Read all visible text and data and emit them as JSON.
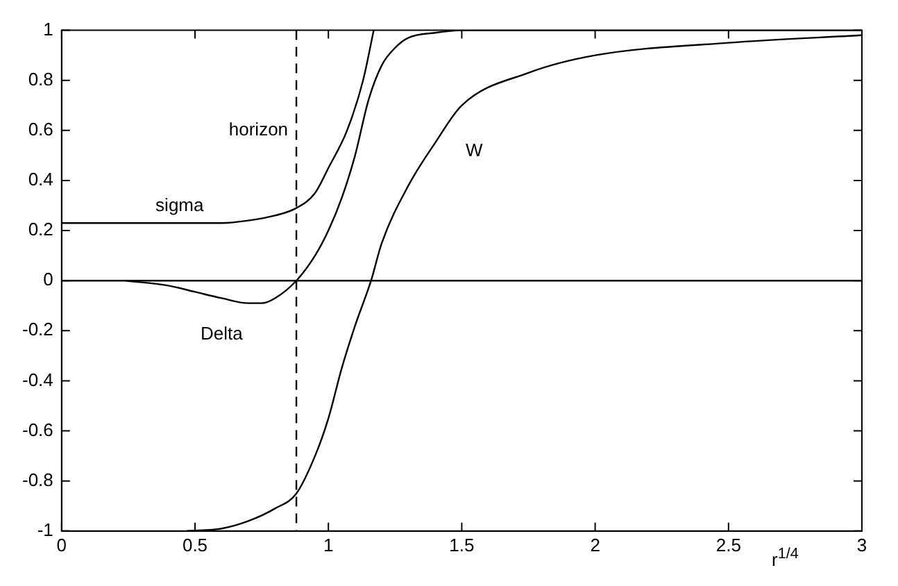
{
  "chart_data": {
    "type": "line",
    "xlabel": "r$^{1/4}$",
    "xlim": [
      0,
      3
    ],
    "xticks": [
      0,
      0.5,
      1,
      1.5,
      2,
      2.5,
      3
    ],
    "ylim": [
      -1,
      1
    ],
    "yticks": [
      -1,
      -0.8,
      -0.6,
      -0.4,
      -0.2,
      0,
      0.2,
      0.4,
      0.6,
      0.8,
      1
    ],
    "grid": false,
    "legend": false,
    "marker": "none",
    "line_style": "solid",
    "series": [
      {
        "name": "sigma",
        "color": "#000000",
        "x": [
          0,
          0.3,
          0.6,
          0.7,
          0.8,
          0.88,
          0.95,
          1.0,
          1.07,
          1.13,
          1.17
        ],
        "values": [
          0.23,
          0.23,
          0.23,
          0.24,
          0.26,
          0.29,
          0.35,
          0.45,
          0.6,
          0.8,
          1.0
        ]
      },
      {
        "name": "Delta",
        "color": "#000000",
        "x": [
          0.24,
          0.4,
          0.5,
          0.6,
          0.7,
          0.75,
          0.8,
          0.88,
          0.95,
          1.0,
          1.05,
          1.1,
          1.15,
          1.2,
          1.25,
          1.3,
          1.4,
          1.5,
          3
        ],
        "values": [
          0,
          -0.02,
          -0.045,
          -0.07,
          -0.09,
          -0.09,
          -0.07,
          0,
          0.1,
          0.2,
          0.33,
          0.5,
          0.72,
          0.86,
          0.93,
          0.97,
          0.99,
          1.0,
          1.0
        ]
      },
      {
        "name": "W",
        "color": "#000000",
        "x": [
          0.47,
          0.6,
          0.7,
          0.8,
          0.88,
          0.95,
          1.0,
          1.05,
          1.1,
          1.16,
          1.2,
          1.3,
          1.4,
          1.5,
          1.75,
          2.0,
          2.5,
          3
        ],
        "values": [
          -1,
          -0.99,
          -0.96,
          -0.91,
          -0.85,
          -0.7,
          -0.55,
          -0.35,
          -0.18,
          0,
          0.15,
          0.38,
          0.55,
          0.7,
          0.83,
          0.9,
          0.95,
          0.98
        ]
      }
    ],
    "ref_lines": [
      {
        "axis": "x",
        "value": 0.88,
        "label": "horizon",
        "color": "#000000",
        "line_style": "dashed"
      },
      {
        "axis": "y",
        "value": 0,
        "color": "#000000",
        "line_style": "solid"
      }
    ]
  }
}
